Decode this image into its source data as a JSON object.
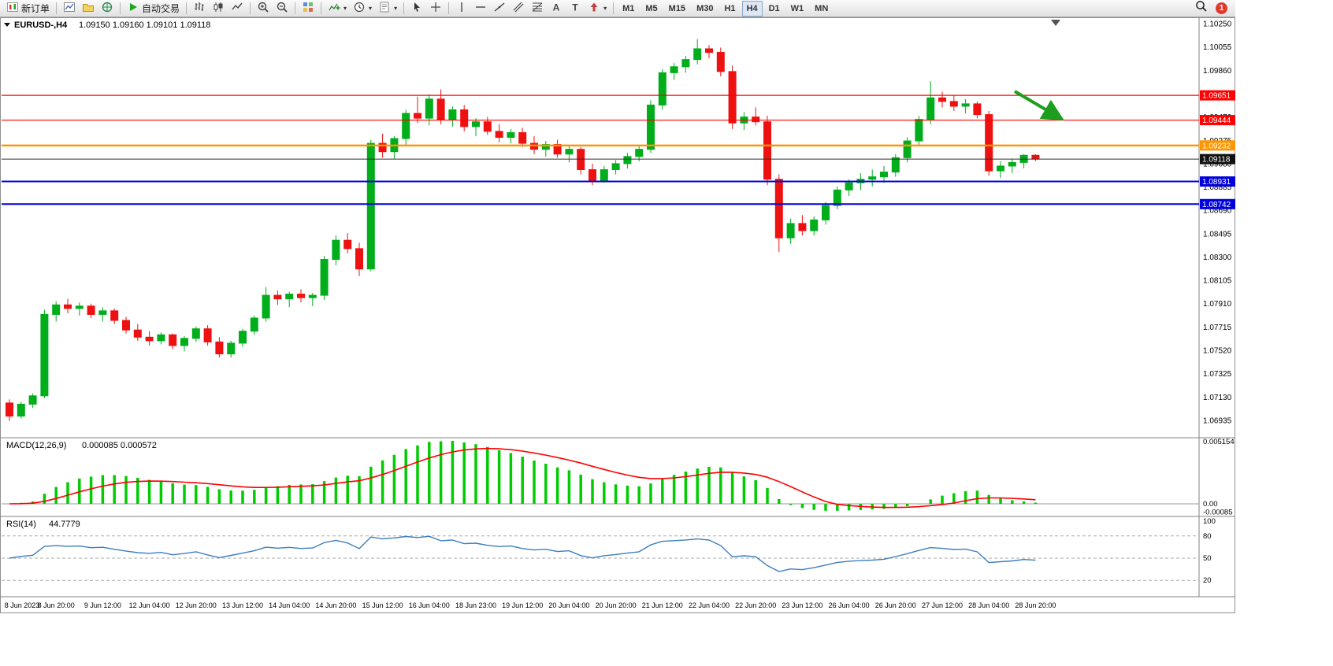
{
  "toolbar": {
    "groups": [
      {
        "name": "trade",
        "items": [
          {
            "name": "new-order-button",
            "icon": "new-order",
            "label": "新订单"
          }
        ]
      },
      {
        "name": "windows",
        "items": [
          {
            "name": "chart-window-button",
            "icon": "chart-window"
          },
          {
            "name": "profiles-button",
            "icon": "profiles"
          },
          {
            "name": "market-watch-button",
            "icon": "market-watch"
          }
        ]
      },
      {
        "name": "autotrade",
        "items": [
          {
            "name": "autotrading-button",
            "icon": "play",
            "label": "自动交易"
          }
        ]
      },
      {
        "name": "chart-type",
        "items": [
          {
            "name": "bar-chart-button",
            "icon": "bars"
          },
          {
            "name": "candlestick-chart-button",
            "icon": "candles"
          },
          {
            "name": "line-chart-button",
            "icon": "line"
          }
        ]
      },
      {
        "name": "zoom",
        "items": [
          {
            "name": "zoom-in-button",
            "icon": "zoom-in"
          },
          {
            "name": "zoom-out-button",
            "icon": "zoom-out"
          }
        ]
      },
      {
        "name": "arrange",
        "items": [
          {
            "name": "tile-windows-button",
            "icon": "grid"
          }
        ]
      },
      {
        "name": "chart-tools",
        "items": [
          {
            "name": "indicators-button",
            "icon": "indicators",
            "caret": true
          },
          {
            "name": "periods-button",
            "icon": "clock",
            "caret": true
          },
          {
            "name": "templates-button",
            "icon": "template",
            "caret": true
          }
        ]
      },
      {
        "name": "pointer",
        "items": [
          {
            "name": "cursor-button",
            "icon": "cursor"
          },
          {
            "name": "crosshair-button",
            "icon": "crosshair"
          }
        ]
      },
      {
        "name": "objects",
        "items": [
          {
            "name": "vertical-line-button",
            "icon": "vline"
          },
          {
            "name": "horizontal-line-button",
            "icon": "hline"
          },
          {
            "name": "trendline-button",
            "icon": "trendline"
          },
          {
            "name": "channel-button",
            "icon": "channel"
          },
          {
            "name": "fibonacci-button",
            "icon": "fibonacci"
          },
          {
            "name": "text-button",
            "icon": "text-a"
          },
          {
            "name": "label-button",
            "icon": "text-t"
          },
          {
            "name": "arrows-button",
            "icon": "shapes",
            "caret": true
          }
        ]
      }
    ],
    "timeframes": [
      {
        "name": "tf-m1",
        "label": "M1"
      },
      {
        "name": "tf-m5",
        "label": "M5"
      },
      {
        "name": "tf-m15",
        "label": "M15"
      },
      {
        "name": "tf-m30",
        "label": "M30"
      },
      {
        "name": "tf-h1",
        "label": "H1"
      },
      {
        "name": "tf-h4",
        "label": "H4",
        "active": true
      },
      {
        "name": "tf-d1",
        "label": "D1"
      },
      {
        "name": "tf-w1",
        "label": "W1"
      },
      {
        "name": "tf-mn",
        "label": "MN"
      }
    ],
    "notification_count": "1"
  },
  "chart": {
    "title": {
      "symbol": "EURUSD-",
      "period": "H4",
      "display": "EURUSD-,H4",
      "ohlc": "1.09150 1.09160 1.09101 1.09118"
    }
  },
  "indicators": {
    "macd": {
      "name": "MACD(12,26,9)",
      "values": "0.000085 0.000572",
      "fast": 12,
      "slow": 26,
      "signal": 9,
      "axis_labels": [
        "0.005154",
        "0.00",
        "-0.00085"
      ]
    },
    "rsi": {
      "name": "RSI(14)",
      "value": "44.7779",
      "period": 14,
      "levels": [
        80,
        50,
        20
      ],
      "axis_labels": [
        "100",
        "80",
        "50",
        "20"
      ]
    }
  },
  "colors": {
    "candle_up": "#00AE1C",
    "candle_down": "#EE1111",
    "macd_bar": "#00CC00",
    "macd_signal": "#FF0000",
    "rsi_line": "#3D7EBF",
    "level_red": "#FF0000",
    "level_orange": "#FF9500",
    "level_blue": "#0000DD",
    "current_price": "#303030",
    "arrow_green": "#1E9E1E"
  },
  "chart_data": {
    "type": "candlestick",
    "symbol": "EURUSD-",
    "period": "H4",
    "current": {
      "open": "1.09150",
      "high": "1.09160",
      "low": "1.09101",
      "close": "1.09118"
    },
    "price_axis_ticks": [
      "1.10250",
      "1.10055",
      "1.09860",
      "1.09665",
      "1.09470",
      "1.09275",
      "1.09080",
      "1.08885",
      "1.08690",
      "1.08495",
      "1.08300",
      "1.08105",
      "1.07910",
      "1.07715",
      "1.07520",
      "1.07325",
      "1.07130",
      "1.06935"
    ],
    "levels": [
      {
        "label": "1.09651",
        "price": 1.09651,
        "color": "#FF0000",
        "width": 1.2
      },
      {
        "label": "1.09444",
        "price": 1.09444,
        "color": "#FF0000",
        "width": 1.2
      },
      {
        "label": "1.09232",
        "price": 1.09232,
        "color": "#FF9500",
        "width": 2.4
      },
      {
        "label": "1.09118",
        "price": 1.09118,
        "color": "#303030",
        "width": 1,
        "badge": "#111111"
      },
      {
        "label": "1.08931",
        "price": 1.08931,
        "color": "#0000DD",
        "width": 2
      },
      {
        "label": "1.08742",
        "price": 1.08742,
        "color": "#0000DD",
        "width": 2
      }
    ],
    "x_labels": [
      "8 Jun 2023",
      "8 Jun 20:00",
      "9 Jun 12:00",
      "12 Jun 04:00",
      "12 Jun 20:00",
      "13 Jun 12:00",
      "14 Jun 04:00",
      "14 Jun 20:00",
      "15 Jun 12:00",
      "16 Jun 04:00",
      "18 Jun 23:00",
      "19 Jun 12:00",
      "20 Jun 04:00",
      "20 Jun 20:00",
      "21 Jun 12:00",
      "22 Jun 04:00",
      "22 Jun 20:00",
      "23 Jun 12:00",
      "26 Jun 04:00",
      "26 Jun 20:00",
      "27 Jun 12:00",
      "28 Jun 04:00",
      "28 Jun 20:00"
    ],
    "x_label_interval": 4,
    "ohlc": [
      [
        1.0708,
        1.0711,
        1.0693,
        1.0697
      ],
      [
        1.0697,
        1.0709,
        1.0695,
        1.0707
      ],
      [
        1.0707,
        1.0716,
        1.0704,
        1.0714
      ],
      [
        1.0714,
        1.0786,
        1.0712,
        1.0782
      ],
      [
        1.0782,
        1.0793,
        1.0776,
        1.079
      ],
      [
        1.079,
        1.0795,
        1.0783,
        1.0787
      ],
      [
        1.0787,
        1.0792,
        1.0781,
        1.0789
      ],
      [
        1.0789,
        1.0791,
        1.0779,
        1.0782
      ],
      [
        1.0782,
        1.0788,
        1.0776,
        1.0785
      ],
      [
        1.0785,
        1.0787,
        1.0774,
        1.0777
      ],
      [
        1.0777,
        1.078,
        1.0766,
        1.0769
      ],
      [
        1.0769,
        1.0774,
        1.076,
        1.0763
      ],
      [
        1.0763,
        1.0768,
        1.0756,
        1.076
      ],
      [
        1.076,
        1.0767,
        1.0757,
        1.0765
      ],
      [
        1.0765,
        1.0766,
        1.0753,
        1.0756
      ],
      [
        1.0756,
        1.0764,
        1.0751,
        1.0762
      ],
      [
        1.0762,
        1.0772,
        1.0759,
        1.077
      ],
      [
        1.077,
        1.0773,
        1.0756,
        1.0759
      ],
      [
        1.0759,
        1.0763,
        1.0746,
        1.0749
      ],
      [
        1.0749,
        1.076,
        1.0746,
        1.0758
      ],
      [
        1.0758,
        1.077,
        1.0755,
        1.0768
      ],
      [
        1.0768,
        1.0781,
        1.0765,
        1.0779
      ],
      [
        1.0779,
        1.0805,
        1.0776,
        1.0798
      ],
      [
        1.0798,
        1.0802,
        1.079,
        1.0795
      ],
      [
        1.0795,
        1.0801,
        1.0788,
        1.0799
      ],
      [
        1.0799,
        1.0803,
        1.0792,
        1.0796
      ],
      [
        1.0796,
        1.08,
        1.0789,
        1.0798
      ],
      [
        1.0798,
        1.0831,
        1.0794,
        1.0828
      ],
      [
        1.0828,
        1.0848,
        1.0823,
        1.0844
      ],
      [
        1.0844,
        1.085,
        1.0833,
        1.0837
      ],
      [
        1.0837,
        1.0842,
        1.0814,
        1.082
      ],
      [
        1.082,
        1.0928,
        1.0818,
        1.0925
      ],
      [
        1.0925,
        1.0933,
        1.0913,
        1.0918
      ],
      [
        1.0918,
        1.0931,
        1.0912,
        1.0929
      ],
      [
        1.0929,
        1.0953,
        1.0924,
        1.095
      ],
      [
        1.095,
        1.0964,
        1.0942,
        1.0946
      ],
      [
        1.0946,
        1.0966,
        1.094,
        1.0962
      ],
      [
        1.0962,
        1.097,
        1.0941,
        1.0945
      ],
      [
        1.0945,
        1.0956,
        1.0939,
        1.0953
      ],
      [
        1.0953,
        1.0957,
        1.0935,
        1.0939
      ],
      [
        1.0939,
        1.0946,
        1.0931,
        1.0943
      ],
      [
        1.0943,
        1.0947,
        1.0932,
        1.0935
      ],
      [
        1.0935,
        1.0941,
        1.0926,
        1.093
      ],
      [
        1.093,
        1.0937,
        1.0925,
        1.0934
      ],
      [
        1.0934,
        1.0938,
        1.0922,
        1.0925
      ],
      [
        1.0925,
        1.0931,
        1.0916,
        1.092
      ],
      [
        1.092,
        1.0927,
        1.0914,
        1.0924
      ],
      [
        1.0924,
        1.0928,
        1.0913,
        1.0916
      ],
      [
        1.0916,
        1.0923,
        1.0909,
        1.092
      ],
      [
        1.092,
        1.0922,
        1.0899,
        1.0903
      ],
      [
        1.0903,
        1.0908,
        1.089,
        1.0894
      ],
      [
        1.0894,
        1.0906,
        1.0892,
        1.0903
      ],
      [
        1.0903,
        1.0911,
        1.0899,
        1.0908
      ],
      [
        1.0908,
        1.0917,
        1.0904,
        1.0914
      ],
      [
        1.0914,
        1.0923,
        1.091,
        1.092
      ],
      [
        1.092,
        1.0961,
        1.0917,
        1.0957
      ],
      [
        1.0957,
        1.0987,
        1.0953,
        1.0984
      ],
      [
        1.0984,
        1.0992,
        1.0978,
        1.0989
      ],
      [
        1.0989,
        1.0998,
        1.0984,
        1.0995
      ],
      [
        1.0995,
        1.1012,
        1.0991,
        1.1004
      ],
      [
        1.1004,
        1.1007,
        1.0996,
        1.1001
      ],
      [
        1.1001,
        1.1005,
        1.0981,
        1.0985
      ],
      [
        1.0985,
        1.099,
        1.0937,
        1.0942
      ],
      [
        1.0942,
        1.0951,
        1.0936,
        1.0947
      ],
      [
        1.0947,
        1.0955,
        1.094,
        1.0943
      ],
      [
        1.0943,
        1.0948,
        1.089,
        1.0895
      ],
      [
        1.0895,
        1.0899,
        1.0834,
        1.0846
      ],
      [
        1.0846,
        1.0862,
        1.0841,
        1.0858
      ],
      [
        1.0858,
        1.0865,
        1.0848,
        1.0852
      ],
      [
        1.0852,
        1.0864,
        1.0848,
        1.0861
      ],
      [
        1.0861,
        1.0876,
        1.0857,
        1.0873
      ],
      [
        1.0873,
        1.0889,
        1.087,
        1.0886
      ],
      [
        1.0886,
        1.0895,
        1.0881,
        1.0892
      ],
      [
        1.0892,
        1.09,
        1.0886,
        1.0895
      ],
      [
        1.0895,
        1.0903,
        1.0889,
        1.0897
      ],
      [
        1.0897,
        1.0906,
        1.0892,
        1.0901
      ],
      [
        1.0901,
        1.0916,
        1.0897,
        1.0913
      ],
      [
        1.0913,
        1.093,
        1.0909,
        1.0927
      ],
      [
        1.0927,
        1.0948,
        1.0923,
        1.0945
      ],
      [
        1.0945,
        1.0977,
        1.0941,
        1.0963
      ],
      [
        1.0963,
        1.0968,
        1.0955,
        1.096
      ],
      [
        1.096,
        1.0965,
        1.0952,
        1.0956
      ],
      [
        1.0956,
        1.0962,
        1.095,
        1.0958
      ],
      [
        1.0958,
        1.096,
        1.0946,
        1.0949
      ],
      [
        1.0949,
        1.0952,
        1.0898,
        1.0902
      ],
      [
        1.0902,
        1.091,
        1.0896,
        1.0906
      ],
      [
        1.0906,
        1.0912,
        1.09,
        1.0909
      ],
      [
        1.0909,
        1.0916,
        1.0904,
        1.0915
      ],
      [
        1.0915,
        1.0916,
        1.09101,
        1.09118
      ]
    ]
  },
  "annotation": {
    "name": "trend-arrow",
    "direction": "down-right",
    "color": "#1E9E1E"
  }
}
